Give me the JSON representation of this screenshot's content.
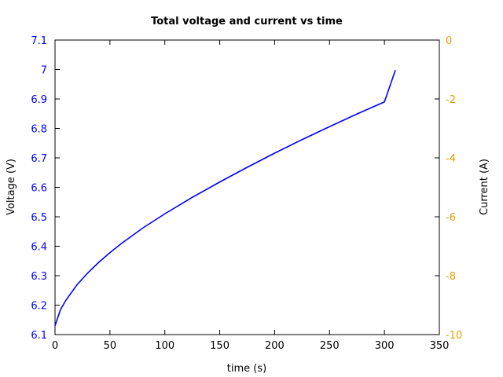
{
  "chart_data": {
    "type": "line",
    "title": "Total voltage and current vs time",
    "xlabel": "time (s)",
    "ylabel": "Voltage (V)",
    "y2label": "Current (A)",
    "xlim": [
      0,
      350
    ],
    "ylim": [
      6.1,
      7.1
    ],
    "y2lim": [
      -10,
      0
    ],
    "x_ticks": [
      "0",
      "50",
      "100",
      "150",
      "200",
      "250",
      "300",
      "350"
    ],
    "y_ticks": [
      "6.1",
      "6.2",
      "6.3",
      "6.4",
      "6.5",
      "6.6",
      "6.7",
      "6.8",
      "6.9",
      "7",
      "7.1"
    ],
    "y2_ticks": [
      "0",
      "-2",
      "-4",
      "-6",
      "-8",
      "-10"
    ],
    "grid": false,
    "colors": {
      "y_axis": "#0000ff",
      "y2_axis": "#e69f00",
      "voltage_series": "#0000ff"
    },
    "series": [
      {
        "axis": "y",
        "x": [
          0,
          5,
          10,
          20,
          30,
          40,
          50,
          60,
          80,
          100,
          125,
          150,
          175,
          200,
          225,
          250,
          275,
          300,
          310
        ],
        "y": [
          6.13,
          6.185,
          6.217,
          6.269,
          6.31,
          6.346,
          6.378,
          6.408,
          6.462,
          6.51,
          6.566,
          6.618,
          6.668,
          6.716,
          6.762,
          6.806,
          6.849,
          6.89,
          6.998
        ]
      }
    ]
  }
}
